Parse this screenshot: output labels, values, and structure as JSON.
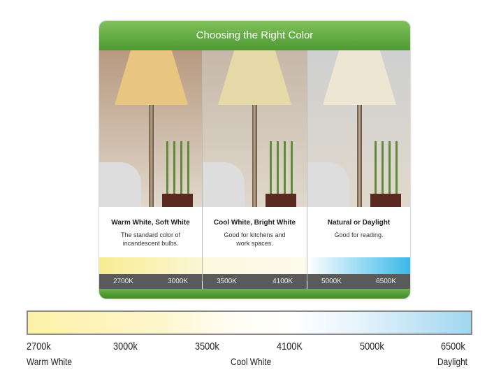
{
  "card": {
    "title": "Choosing the Right Color",
    "columns": [
      {
        "heading": "Warm White, Soft White",
        "desc": "The standard color of incandescent bulbs.",
        "k_low": "2700K",
        "k_high": "3000K",
        "wall": "#b89a80",
        "shade": "#e8c680",
        "gradient": [
          "#f8ec90",
          "#fbf6d6"
        ]
      },
      {
        "heading": "Cool White, Bright White",
        "desc": "Good for kitchens and work spaces.",
        "k_low": "3500K",
        "k_high": "4100K",
        "wall": "#c5b8a8",
        "shade": "#e6d9a8",
        "gradient": [
          "#fcf8dc",
          "#fdfbee"
        ]
      },
      {
        "heading": "Natural or Daylight",
        "desc": "Good for reading.",
        "k_low": "5000K",
        "k_high": "6500K",
        "wall": "#cfd0d0",
        "shade": "#ece6d2",
        "gradient": [
          "#ffffff",
          "#3bb8e8"
        ]
      }
    ]
  },
  "scale": {
    "ticks": [
      "2700k",
      "3000k",
      "3500k",
      "4100K",
      "5000k",
      "6500k"
    ],
    "labels": [
      "Warm White",
      "Cool White",
      "Daylight"
    ]
  }
}
